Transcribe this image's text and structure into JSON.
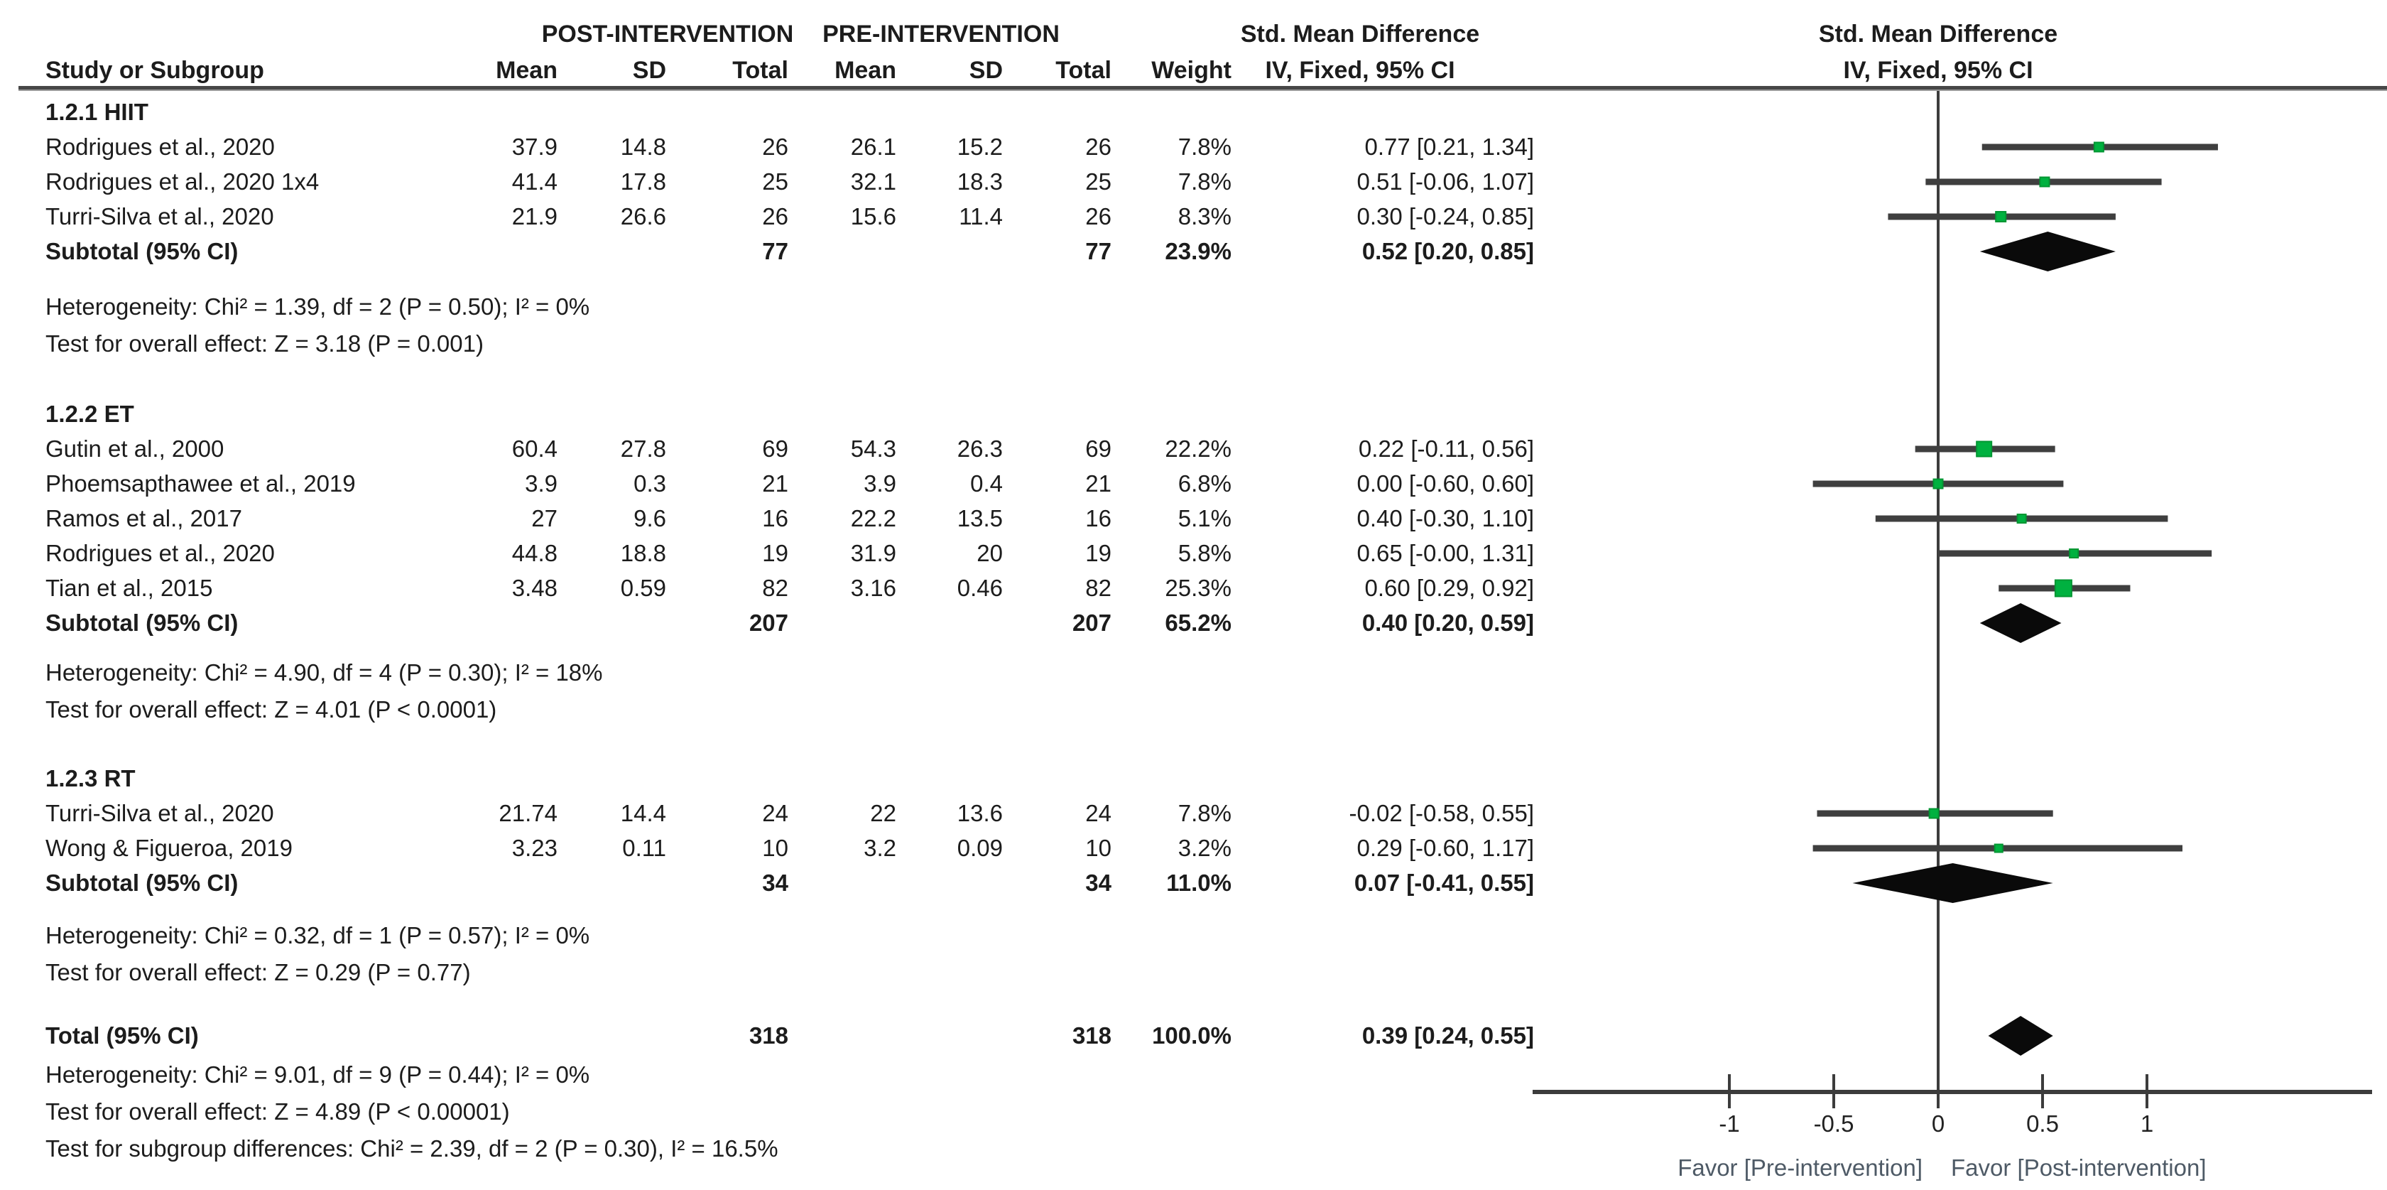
{
  "header": {
    "study_col": "Study or Subgroup",
    "group_post": "POST-INTERVENTION",
    "group_pre": "PRE-INTERVENTION",
    "smd_title": "Std. Mean Difference",
    "smd_subtitle": "IV, Fixed, 95% CI",
    "plot_title": "Std. Mean Difference",
    "plot_subtitle": "IV, Fixed, 95% CI",
    "cols": [
      "Mean",
      "SD",
      "Total",
      "Mean",
      "SD",
      "Total",
      "Weight"
    ]
  },
  "colors": {
    "marker_green": "#00b140",
    "marker_green_border": "#009632",
    "ci_line": "#3f3f3f",
    "diamond": "#0a0a0a",
    "axis": "#3c3c3c",
    "text": "#1c1c1c",
    "favor_label": "#4e5a66"
  },
  "chart_data": {
    "type": "forest",
    "effect_measure": "Std. Mean Difference, IV, Fixed, 95% CI",
    "xlim": [
      -1.94,
      2.08
    ],
    "ticks": [
      {
        "v": -1,
        "label": "-1"
      },
      {
        "v": -0.5,
        "label": "-0.5"
      },
      {
        "v": 0,
        "label": "0"
      },
      {
        "v": 0.5,
        "label": "0.5"
      },
      {
        "v": 1,
        "label": "1"
      }
    ],
    "favor_left": "Favor [Pre-intervention]",
    "favor_right": "Favor [Post-intervention]",
    "groups": [
      {
        "title": "1.2.1 HIIT",
        "studies": [
          {
            "label": "Rodrigues et al., 2020",
            "post_mean": "37.9",
            "post_sd": "14.8",
            "post_total": "26",
            "pre_mean": "26.1",
            "pre_sd": "15.2",
            "pre_total": "26",
            "weight": "7.8%",
            "weight_pct": 7.8,
            "ci_text": "0.77 [0.21, 1.34]",
            "est": 0.77,
            "lo": 0.21,
            "hi": 1.34
          },
          {
            "label": "Rodrigues et al., 2020 1x4",
            "post_mean": "41.4",
            "post_sd": "17.8",
            "post_total": "25",
            "pre_mean": "32.1",
            "pre_sd": "18.3",
            "pre_total": "25",
            "weight": "7.8%",
            "weight_pct": 7.8,
            "ci_text": "0.51 [-0.06, 1.07]",
            "est": 0.51,
            "lo": -0.06,
            "hi": 1.07
          },
          {
            "label": "Turri-Silva et al., 2020",
            "post_mean": "21.9",
            "post_sd": "26.6",
            "post_total": "26",
            "pre_mean": "15.6",
            "pre_sd": "11.4",
            "pre_total": "26",
            "weight": "8.3%",
            "weight_pct": 8.3,
            "ci_text": "0.30 [-0.24, 0.85]",
            "est": 0.3,
            "lo": -0.24,
            "hi": 0.85
          }
        ],
        "subtotal": {
          "label": "Subtotal (95% CI)",
          "post_total": "77",
          "pre_total": "77",
          "weight": "23.9%",
          "ci_text": "0.52 [0.20, 0.85]",
          "est": 0.52,
          "lo": 0.2,
          "hi": 0.85
        },
        "heterogeneity": "Heterogeneity: Chi² = 1.39, df = 2 (P = 0.50); I² = 0%",
        "overall_effect": "Test for overall effect: Z = 3.18 (P = 0.001)"
      },
      {
        "title": "1.2.2 ET",
        "studies": [
          {
            "label": "Gutin et al., 2000",
            "post_mean": "60.4",
            "post_sd": "27.8",
            "post_total": "69",
            "pre_mean": "54.3",
            "pre_sd": "26.3",
            "pre_total": "69",
            "weight": "22.2%",
            "weight_pct": 22.2,
            "ci_text": "0.22 [-0.11, 0.56]",
            "est": 0.22,
            "lo": -0.11,
            "hi": 0.56
          },
          {
            "label": "Phoemsapthawee et al., 2019",
            "post_mean": "3.9",
            "post_sd": "0.3",
            "post_total": "21",
            "pre_mean": "3.9",
            "pre_sd": "0.4",
            "pre_total": "21",
            "weight": "6.8%",
            "weight_pct": 6.8,
            "ci_text": "0.00 [-0.60, 0.60]",
            "est": 0.0,
            "lo": -0.6,
            "hi": 0.6
          },
          {
            "label": "Ramos et al., 2017",
            "post_mean": "27",
            "post_sd": "9.6",
            "post_total": "16",
            "pre_mean": "22.2",
            "pre_sd": "13.5",
            "pre_total": "16",
            "weight": "5.1%",
            "weight_pct": 5.1,
            "ci_text": "0.40 [-0.30, 1.10]",
            "est": 0.4,
            "lo": -0.3,
            "hi": 1.1
          },
          {
            "label": "Rodrigues et al., 2020",
            "post_mean": "44.8",
            "post_sd": "18.8",
            "post_total": "19",
            "pre_mean": "31.9",
            "pre_sd": "20",
            "pre_total": "19",
            "weight": "5.8%",
            "weight_pct": 5.8,
            "ci_text": "0.65 [-0.00, 1.31]",
            "est": 0.65,
            "lo": 0.0,
            "hi": 1.31
          },
          {
            "label": "Tian et al., 2015",
            "post_mean": "3.48",
            "post_sd": "0.59",
            "post_total": "82",
            "pre_mean": "3.16",
            "pre_sd": "0.46",
            "pre_total": "82",
            "weight": "25.3%",
            "weight_pct": 25.3,
            "ci_text": "0.60 [0.29, 0.92]",
            "est": 0.6,
            "lo": 0.29,
            "hi": 0.92
          }
        ],
        "subtotal": {
          "label": "Subtotal (95% CI)",
          "post_total": "207",
          "pre_total": "207",
          "weight": "65.2%",
          "ci_text": "0.40 [0.20, 0.59]",
          "est": 0.4,
          "lo": 0.2,
          "hi": 0.59
        },
        "heterogeneity": "Heterogeneity: Chi² = 4.90, df = 4 (P = 0.30); I² = 18%",
        "overall_effect": "Test for overall effect: Z = 4.01 (P < 0.0001)"
      },
      {
        "title": "1.2.3 RT",
        "studies": [
          {
            "label": "Turri-Silva et al., 2020",
            "post_mean": "21.74",
            "post_sd": "14.4",
            "post_total": "24",
            "pre_mean": "22",
            "pre_sd": "13.6",
            "pre_total": "24",
            "weight": "7.8%",
            "weight_pct": 7.8,
            "ci_text": "-0.02 [-0.58, 0.55]",
            "est": -0.02,
            "lo": -0.58,
            "hi": 0.55
          },
          {
            "label": "Wong & Figueroa, 2019",
            "post_mean": "3.23",
            "post_sd": "0.11",
            "post_total": "10",
            "pre_mean": "3.2",
            "pre_sd": "0.09",
            "pre_total": "10",
            "weight": "3.2%",
            "weight_pct": 3.2,
            "ci_text": "0.29 [-0.60, 1.17]",
            "est": 0.29,
            "lo": -0.6,
            "hi": 1.17
          }
        ],
        "subtotal": {
          "label": "Subtotal (95% CI)",
          "post_total": "34",
          "pre_total": "34",
          "weight": "11.0%",
          "ci_text": "0.07 [-0.41, 0.55]",
          "est": 0.07,
          "lo": -0.41,
          "hi": 0.55
        },
        "heterogeneity": "Heterogeneity: Chi² = 0.32, df = 1 (P = 0.57); I² = 0%",
        "overall_effect": "Test for overall effect: Z = 0.29 (P = 0.77)"
      }
    ],
    "total": {
      "label": "Total (95% CI)",
      "post_total": "318",
      "pre_total": "318",
      "weight": "100.0%",
      "ci_text": "0.39 [0.24, 0.55]",
      "est": 0.39,
      "lo": 0.24,
      "hi": 0.55
    },
    "total_heterogeneity": "Heterogeneity: Chi² = 9.01, df = 9 (P = 0.44); I² = 0%",
    "total_overall_effect": "Test for overall effect: Z = 4.89 (P < 0.00001)",
    "subgroup_differences": "Test for subgroup differences: Chi² = 2.39, df = 2 (P = 0.30), I² = 16.5%"
  }
}
